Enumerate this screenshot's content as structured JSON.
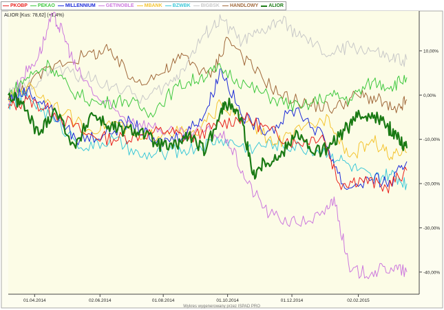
{
  "instrument_label": "ALIOR [Kus: 78,62] (+1,4%)",
  "footer": "Wykres wygenerowany przez ISPAD PRO",
  "chart_data": {
    "type": "line",
    "x_ticks": [
      "01.04.2014",
      "02.06.2014",
      "01.08.2014",
      "01.10.2014",
      "01.12.2014",
      "02.02.2015"
    ],
    "x_tick_dates": [
      "2014-04-01",
      "2014-06-02",
      "2014-08-01",
      "2014-10-01",
      "2014-12-01",
      "2015-02-02"
    ],
    "x_range": [
      "2014-03-07",
      "2015-03-20"
    ],
    "y_ticks": [
      10,
      0,
      -10,
      -20,
      -30,
      -40
    ],
    "y_tick_labels": [
      "10,00%",
      "0,00%",
      "-10,00%",
      "-20,00%",
      "-30,00%",
      "-40,00%"
    ],
    "ylim": [
      -45,
      19
    ],
    "grid": false,
    "legend_position": "top-left",
    "series": [
      {
        "name": "PKOBP",
        "color": "#e8201c",
        "width": 1,
        "dates": [
          "2014-03-07",
          "2014-03-25",
          "2014-04-20",
          "2014-05-20",
          "2014-06-15",
          "2014-07-10",
          "2014-08-05",
          "2014-08-25",
          "2014-09-20",
          "2014-10-15",
          "2014-11-10",
          "2014-12-05",
          "2014-12-30",
          "2015-01-15",
          "2015-02-05",
          "2015-03-01",
          "2015-03-20"
        ],
        "values": [
          -3,
          -1,
          -4,
          -9,
          -10,
          -9,
          -8,
          -10,
          -7,
          -5,
          -8,
          -11,
          -9,
          -20,
          -19,
          -21,
          -17
        ]
      },
      {
        "name": "PEKAO",
        "color": "#3ec83e",
        "width": 1,
        "dates": [
          "2014-03-07",
          "2014-03-25",
          "2014-04-15",
          "2014-05-05",
          "2014-06-01",
          "2014-06-25",
          "2014-07-20",
          "2014-08-15",
          "2014-09-05",
          "2014-09-25",
          "2014-10-20",
          "2014-11-15",
          "2014-12-10",
          "2015-01-05",
          "2015-01-25",
          "2015-02-15",
          "2015-03-05",
          "2015-03-20"
        ],
        "values": [
          0,
          4,
          7,
          1,
          -2,
          -1,
          -4,
          2,
          4,
          6,
          2,
          -1,
          -3,
          0,
          -1,
          3,
          2,
          4
        ]
      },
      {
        "name": "MILLENNIUM",
        "color": "#1c2ad8",
        "width": 1,
        "dates": [
          "2014-03-07",
          "2014-03-25",
          "2014-04-15",
          "2014-05-10",
          "2014-06-05",
          "2014-07-01",
          "2014-07-25",
          "2014-08-20",
          "2014-09-10",
          "2014-09-25",
          "2014-10-15",
          "2014-11-10",
          "2014-12-05",
          "2015-01-01",
          "2015-01-20",
          "2015-02-15",
          "2015-03-05",
          "2015-03-20"
        ],
        "values": [
          -1,
          1,
          -3,
          -10,
          -9,
          -6,
          -11,
          -9,
          -4,
          6,
          -5,
          -8,
          -3,
          -10,
          -21,
          -19,
          -20,
          -15
        ]
      },
      {
        "name": "GETINOBLE",
        "color": "#cc77dd",
        "width": 1,
        "dates": [
          "2014-03-07",
          "2014-03-20",
          "2014-04-05",
          "2014-04-18",
          "2014-04-28",
          "2014-05-10",
          "2014-06-01",
          "2014-06-25",
          "2014-07-20",
          "2014-08-15",
          "2014-09-10",
          "2014-10-01",
          "2014-10-20",
          "2014-11-10",
          "2014-12-05",
          "2015-01-01",
          "2015-01-10",
          "2015-01-25",
          "2015-02-15",
          "2015-03-05",
          "2015-03-20"
        ],
        "values": [
          -2,
          4,
          9,
          18,
          14,
          6,
          -1,
          -5,
          -7,
          -9,
          -8,
          -10,
          -20,
          -27,
          -29,
          -27,
          -23,
          -40,
          -40,
          -39,
          -40
        ]
      },
      {
        "name": "MBANK",
        "color": "#f4c430",
        "width": 1,
        "dates": [
          "2014-03-07",
          "2014-03-25",
          "2014-04-20",
          "2014-05-20",
          "2014-06-15",
          "2014-07-10",
          "2014-08-05",
          "2014-09-01",
          "2014-09-25",
          "2014-10-20",
          "2014-11-15",
          "2014-12-10",
          "2015-01-05",
          "2015-01-25",
          "2015-02-15",
          "2015-03-05",
          "2015-03-20"
        ],
        "values": [
          -1,
          2,
          -2,
          -8,
          -6,
          -10,
          -8,
          -9,
          -2,
          -6,
          -11,
          -8,
          -5,
          -14,
          -10,
          -14,
          -13
        ]
      },
      {
        "name": "BZWBK",
        "color": "#3cc8d8",
        "width": 1,
        "dates": [
          "2014-03-07",
          "2014-03-25",
          "2014-04-20",
          "2014-05-20",
          "2014-06-15",
          "2014-07-10",
          "2014-08-05",
          "2014-09-01",
          "2014-09-25",
          "2014-10-20",
          "2014-11-15",
          "2014-12-10",
          "2015-01-05",
          "2015-01-25",
          "2015-02-15",
          "2015-03-05",
          "2015-03-20"
        ],
        "values": [
          -2,
          0,
          -6,
          -12,
          -10,
          -14,
          -13,
          -12,
          -10,
          -12,
          -11,
          -12,
          -13,
          -16,
          -19,
          -18,
          -20
        ]
      },
      {
        "name": "BIGBSK",
        "color": "#c8c8c8",
        "width": 1,
        "dates": [
          "2014-03-07",
          "2014-03-25",
          "2014-04-20",
          "2014-05-20",
          "2014-06-15",
          "2014-07-15",
          "2014-08-10",
          "2014-08-25",
          "2014-09-10",
          "2014-09-25",
          "2014-10-15",
          "2014-11-01",
          "2014-11-20",
          "2014-12-10",
          "2015-01-05",
          "2015-01-25",
          "2015-02-15",
          "2015-03-05",
          "2015-03-20"
        ],
        "values": [
          0,
          2,
          6,
          4,
          2,
          -1,
          3,
          8,
          14,
          17,
          12,
          14,
          17,
          13,
          9,
          11,
          10,
          8,
          8
        ]
      },
      {
        "name": "HANDLOWY",
        "color": "#a0683a",
        "width": 1,
        "dates": [
          "2014-03-07",
          "2014-03-25",
          "2014-04-20",
          "2014-05-20",
          "2014-06-10",
          "2014-07-05",
          "2014-08-01",
          "2014-08-20",
          "2014-09-15",
          "2014-10-01",
          "2014-10-25",
          "2014-11-20",
          "2014-12-15",
          "2015-01-10",
          "2015-02-01",
          "2015-02-20",
          "2015-03-10",
          "2015-03-20"
        ],
        "values": [
          -1,
          2,
          7,
          9,
          10,
          3,
          5,
          9,
          4,
          13,
          6,
          0,
          -2,
          -3,
          0,
          -1,
          -4,
          -1
        ]
      },
      {
        "name": "ALIOR",
        "color": "#1a7a14",
        "width": 2.2,
        "dates": [
          "2014-03-07",
          "2014-03-20",
          "2014-04-05",
          "2014-04-20",
          "2014-05-10",
          "2014-05-25",
          "2014-06-10",
          "2014-06-25",
          "2014-07-10",
          "2014-07-25",
          "2014-08-10",
          "2014-08-25",
          "2014-09-10",
          "2014-09-25",
          "2014-10-05",
          "2014-10-15",
          "2014-10-25",
          "2014-11-05",
          "2014-11-20",
          "2014-12-05",
          "2014-12-20",
          "2015-01-05",
          "2015-01-20",
          "2015-02-01",
          "2015-02-15",
          "2015-03-01",
          "2015-03-10",
          "2015-03-20"
        ],
        "values": [
          0,
          -2,
          -9,
          -3,
          -12,
          -4,
          -7,
          -8,
          -8,
          -11,
          -12,
          -9,
          -13,
          -3,
          -2,
          -6,
          -18,
          -15,
          -14,
          -8,
          -13,
          -12,
          -8,
          -5,
          -4,
          -7,
          -9,
          -12
        ]
      }
    ]
  }
}
